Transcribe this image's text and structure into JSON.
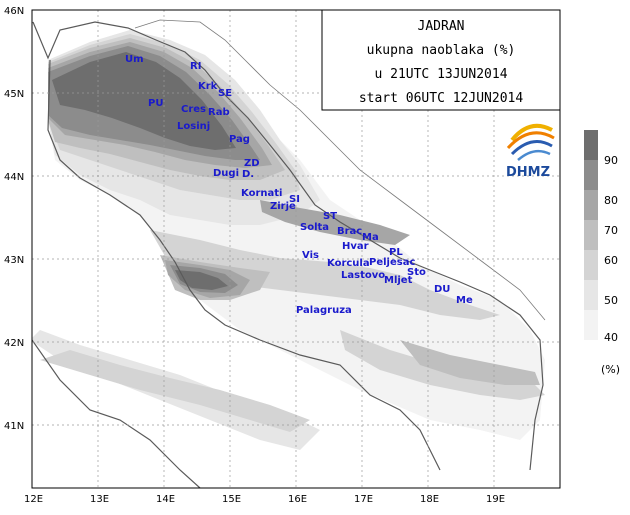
{
  "title": {
    "line1": "JADRAN",
    "line2": "ukupna naoblaka (%)",
    "line3": "u 21UTC 13JUN2014",
    "line4": "start 06UTC 12JUN2014"
  },
  "logo": {
    "text": "DHMZ",
    "icon": "dhmz-swirl-logo"
  },
  "axes": {
    "lat_ticks": [
      {
        "label": "46N"
      },
      {
        "label": "45N"
      },
      {
        "label": "44N"
      },
      {
        "label": "43N"
      },
      {
        "label": "42N"
      },
      {
        "label": "41N"
      }
    ],
    "lon_ticks": [
      {
        "label": "12E"
      },
      {
        "label": "13E"
      },
      {
        "label": "14E"
      },
      {
        "label": "15E"
      },
      {
        "label": "16E"
      },
      {
        "label": "17E"
      },
      {
        "label": "18E"
      },
      {
        "label": "19E"
      }
    ]
  },
  "legend": {
    "unit": "(%)",
    "levels": [
      {
        "label": "90",
        "color": "#6e6e6e"
      },
      {
        "label": "80",
        "color": "#8c8c8c"
      },
      {
        "label": "70",
        "color": "#a6a6a6"
      },
      {
        "label": "60",
        "color": "#bfbfbf"
      },
      {
        "label": "50",
        "color": "#d4d4d4"
      },
      {
        "label": "40",
        "color": "#e6e6e6"
      },
      {
        "label": "",
        "color": "#f3f3f3"
      }
    ]
  },
  "places": [
    {
      "name": "Um"
    },
    {
      "name": "RI"
    },
    {
      "name": "Krk"
    },
    {
      "name": "SE"
    },
    {
      "name": "PU"
    },
    {
      "name": "Cres"
    },
    {
      "name": "Rab"
    },
    {
      "name": "Losinj"
    },
    {
      "name": "Pag"
    },
    {
      "name": "ZD"
    },
    {
      "name": "Dugi"
    },
    {
      "name": "D."
    },
    {
      "name": "Kornati"
    },
    {
      "name": "SI"
    },
    {
      "name": "Zirje"
    },
    {
      "name": "ST"
    },
    {
      "name": "Solta"
    },
    {
      "name": "Brac"
    },
    {
      "name": "Ma"
    },
    {
      "name": "Hvar"
    },
    {
      "name": "PL"
    },
    {
      "name": "Vis"
    },
    {
      "name": "Korcula"
    },
    {
      "name": "Peljesac"
    },
    {
      "name": "Lastovo"
    },
    {
      "name": "Mljet"
    },
    {
      "name": "Sto"
    },
    {
      "name": "DU"
    },
    {
      "name": "Me"
    },
    {
      "name": "Palagruza"
    }
  ]
}
